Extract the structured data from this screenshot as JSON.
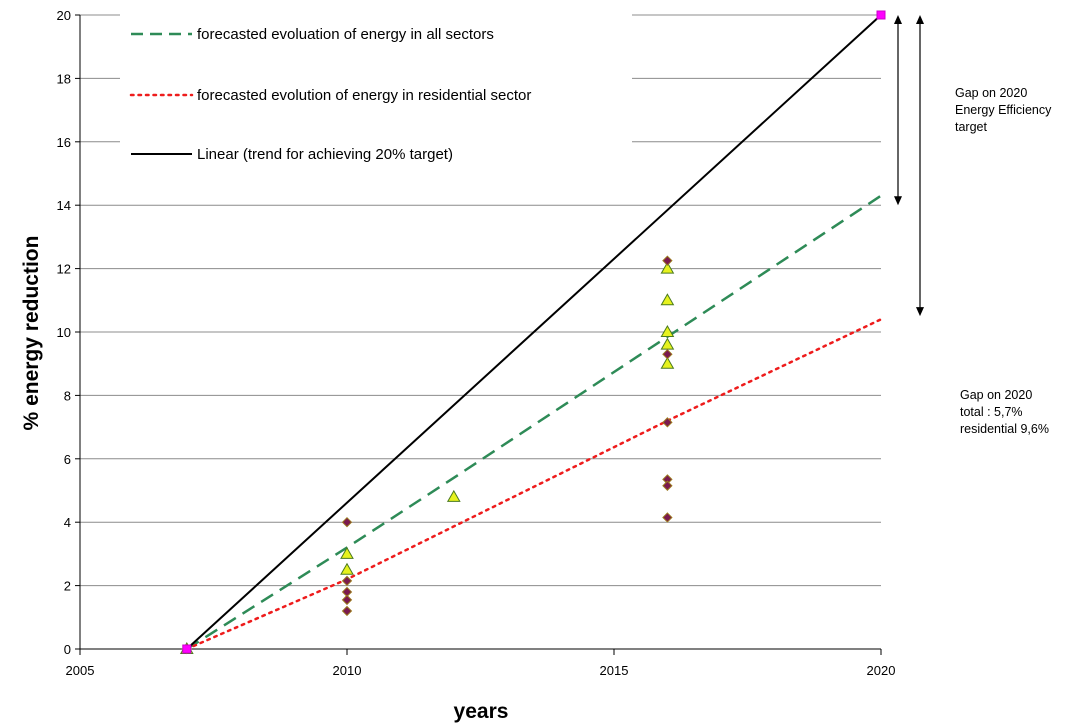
{
  "chart_data": {
    "type": "scatter",
    "xlabel": "years",
    "ylabel": "% energy reduction",
    "xlim": [
      2005,
      2020
    ],
    "ylim": [
      0,
      20
    ],
    "xticks": [
      2005,
      2010,
      2015,
      2020
    ],
    "yticks": [
      0,
      2,
      4,
      6,
      8,
      10,
      12,
      14,
      16,
      18,
      20
    ],
    "grid": "horizontal",
    "legend_position": "top-left",
    "series": [
      {
        "name": "forecasted evoluation of energy in all sectors",
        "kind": "line",
        "style": "dashed",
        "color": "#2e8b57",
        "x": [
          2007,
          2010,
          2012,
          2016,
          2020
        ],
        "y": [
          0,
          3.2,
          5.4,
          9.85,
          14.3
        ]
      },
      {
        "name": "forecasted evolution of energy in residential sector",
        "kind": "line",
        "style": "dotted",
        "color": "#ee1c1c",
        "x": [
          2007,
          2010,
          2016,
          2020
        ],
        "y": [
          0,
          2.2,
          7.2,
          10.4
        ]
      },
      {
        "name": "Linear (trend for achieving 20% target)",
        "kind": "line",
        "style": "solid",
        "color": "#000000",
        "x": [
          2007,
          2020
        ],
        "y": [
          0,
          20
        ]
      },
      {
        "kind": "points",
        "marker": "triangle",
        "color": "#e6f21e",
        "stroke": "#4a7a1e",
        "x": [
          2007,
          2010,
          2010,
          2012,
          2016,
          2016,
          2016,
          2016,
          2016
        ],
        "y": [
          0,
          3.0,
          2.5,
          4.8,
          12.0,
          11.0,
          10.0,
          9.6,
          9.0
        ]
      },
      {
        "kind": "points",
        "marker": "diamond",
        "color": "#7b1a4e",
        "stroke": "#9a7a1e",
        "x": [
          2007,
          2010,
          2010,
          2010,
          2010,
          2010,
          2016,
          2016,
          2016,
          2016,
          2016,
          2016
        ],
        "y": [
          0,
          4.0,
          2.15,
          1.8,
          1.55,
          1.2,
          12.25,
          9.3,
          7.15,
          5.35,
          5.15,
          4.15
        ]
      },
      {
        "kind": "points",
        "marker": "square",
        "color": "#ff00ff",
        "stroke": "#cc00cc",
        "x": [
          2007,
          2020
        ],
        "y": [
          0,
          20
        ]
      }
    ],
    "annotations": [
      {
        "text_lines": [
          "Gap on 2020",
          "Energy Efficiency",
          "target"
        ],
        "arrow_y": [
          20,
          14
        ]
      },
      {
        "text_lines": [
          "Gap on 2020",
          "total : 5,7%",
          "residential 9,6%"
        ],
        "arrow_y": [
          20,
          10.5
        ]
      }
    ]
  }
}
